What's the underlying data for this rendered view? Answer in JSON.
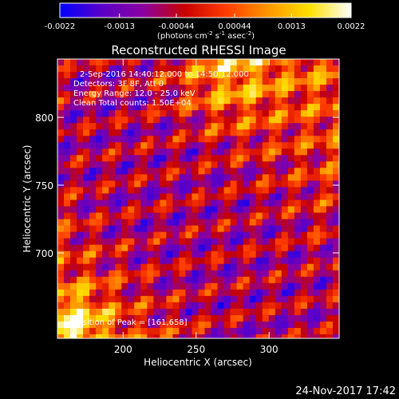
{
  "chart_data": {
    "type": "heatmap",
    "title": "Reconstructed RHESSI Image",
    "xlabel": "Heliocentric X (arcsec)",
    "ylabel": "Heliocentric Y (arcsec)",
    "x_ticks": [
      200,
      250,
      300
    ],
    "y_ticks": [
      700,
      750,
      800
    ],
    "x_tick_labels": [
      "200",
      "250",
      "300"
    ],
    "y_tick_labels": [
      "700",
      "750",
      "800"
    ],
    "xlim": [
      155,
      348
    ],
    "ylim": [
      637,
      843
    ],
    "colorbar": {
      "range": [
        -0.0022,
        0.0022
      ],
      "tick_labels": [
        "-0.0022",
        "-0.0013",
        "-0.00044",
        "0.00044",
        "0.0013",
        "0.0022"
      ],
      "units_text": "(photons cm",
      "units_sup1": "-2",
      "units_mid": " s",
      "units_sup2": "-1",
      "units_mid2": " asec",
      "units_sup3": "-2",
      "units_end": ")",
      "colors": [
        "#0000ff",
        "#5a00c8",
        "#8a00a0",
        "#c80000",
        "#ff3c00",
        "#ff9600",
        "#ffe000",
        "#ffffff"
      ]
    },
    "annotations": {
      "time": "2-Sep-2016 14:40:12.000 to 14:50:12.000",
      "detectors": "Detectors: 3F 8F, Att 0",
      "energy": "Energy Range: 12.0 - 25.0 keV",
      "clean": "Clean    Total counts: 1.50E+04",
      "peak": "Position of Peak = [161,658]"
    },
    "grid": false
  },
  "footer": {
    "timestamp": "24-Nov-2017 17:42"
  }
}
